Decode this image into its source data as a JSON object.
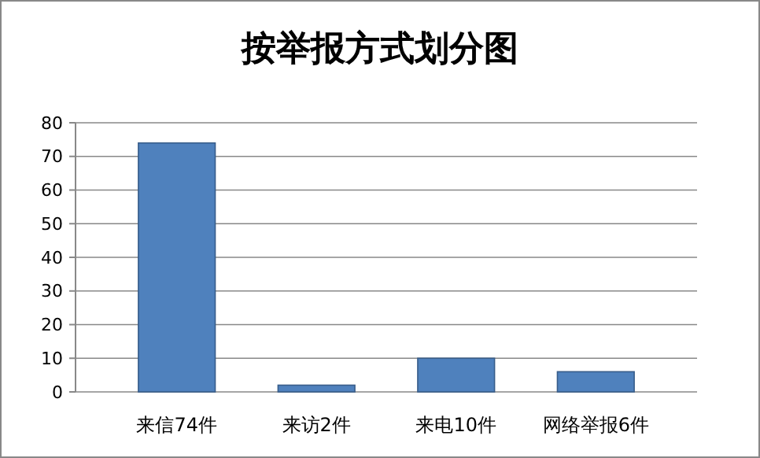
{
  "chart_data": {
    "type": "bar",
    "title": "按举报方式划分图",
    "categories": [
      "来信74件",
      "来访2件",
      "来电10件",
      "网络举报6件"
    ],
    "values": [
      74,
      2,
      10,
      6
    ],
    "color": "#4f81bd",
    "ylim": [
      0,
      80
    ],
    "yticks": [
      0,
      10,
      20,
      30,
      40,
      50,
      60,
      70,
      80
    ],
    "grid": "y"
  }
}
